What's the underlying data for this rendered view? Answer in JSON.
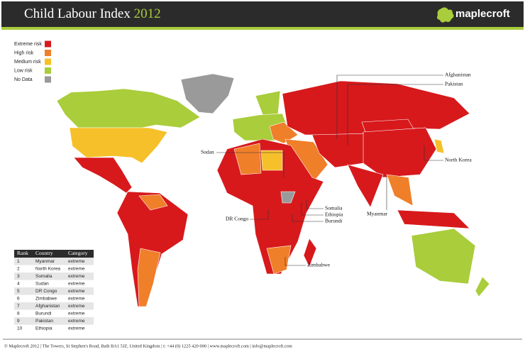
{
  "header": {
    "title": "Child Labour Index",
    "year": "2012",
    "logo": "maplecroft"
  },
  "legend": [
    {
      "label": "Extreme risk",
      "color": "#d7191c"
    },
    {
      "label": "High risk",
      "color": "#f07f2a"
    },
    {
      "label": "Medium risk",
      "color": "#f6c02a"
    },
    {
      "label": "Low risk",
      "color": "#a9cd3b"
    },
    {
      "label": "No Data",
      "color": "#9a9a9a"
    }
  ],
  "map_labels": [
    "Afghanistan",
    "Pakistan",
    "North Korea",
    "Sudan",
    "Somalia",
    "Ethiopia",
    "Burundi",
    "DR Congo",
    "Myanmar",
    "Zimbabwe"
  ],
  "table": {
    "columns": [
      "Rank",
      "Country",
      "Category"
    ],
    "rows": [
      [
        1,
        "Myanmar",
        "extreme"
      ],
      [
        2,
        "North Korea",
        "extreme"
      ],
      [
        3,
        "Somalia",
        "extreme"
      ],
      [
        4,
        "Sudan",
        "extreme"
      ],
      [
        5,
        "DR Congo",
        "extreme"
      ],
      [
        6,
        "Zimbabwe",
        "extreme"
      ],
      [
        7,
        "Afghanistan",
        "extreme"
      ],
      [
        8,
        "Burundi",
        "extreme"
      ],
      [
        9,
        "Pakistan",
        "extreme"
      ],
      [
        10,
        "Ethiopia",
        "extreme"
      ]
    ]
  },
  "footer": "© Maplecroft 2012 | The Towers, St Stephen's Road, Bath BA1 5JZ, United Kingdom | t: +44 (0) 1225 420 000 | www.maplecroft.com | info@maplecroft.com"
}
